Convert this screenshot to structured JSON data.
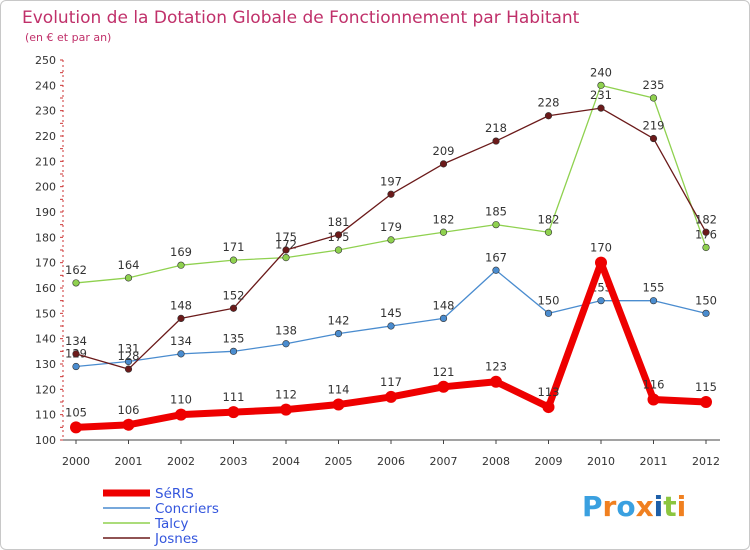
{
  "chart_data": {
    "type": "line",
    "title": "Evolution de la Dotation Globale de Fonctionnement par Habitant",
    "subtitle": "(en € et par an)",
    "xlabel": "",
    "ylabel": "",
    "x": [
      "2000",
      "2001",
      "2002",
      "2003",
      "2004",
      "2005",
      "2006",
      "2007",
      "2008",
      "2009",
      "2010",
      "2011",
      "2012"
    ],
    "ylim": [
      100,
      250
    ],
    "yticks": [
      100,
      110,
      120,
      130,
      140,
      150,
      160,
      170,
      180,
      190,
      200,
      210,
      220,
      230,
      240,
      250
    ],
    "grid": false,
    "legend_position": "bottom-left",
    "series": [
      {
        "name": "SéRIS",
        "color": "#ee0000",
        "values": [
          105,
          106,
          110,
          111,
          112,
          114,
          117,
          121,
          123,
          113,
          170,
          116,
          115
        ]
      },
      {
        "name": "Concriers",
        "color": "#4a8ccf",
        "values": [
          129,
          131,
          134,
          135,
          138,
          142,
          145,
          148,
          167,
          150,
          155,
          155,
          150
        ]
      },
      {
        "name": "Talcy",
        "color": "#8fd14f",
        "values": [
          162,
          164,
          169,
          171,
          172,
          175,
          179,
          182,
          185,
          182,
          240,
          235,
          176
        ]
      },
      {
        "name": "Josnes",
        "color": "#6b1a1a",
        "values": [
          134,
          128,
          148,
          152,
          175,
          181,
          197,
          209,
          218,
          228,
          231,
          219,
          182
        ]
      }
    ]
  },
  "logo": {
    "text": "Proxiti",
    "colors": [
      "#3aa0e0",
      "#f08020",
      "#3aa0e0",
      "#f08020",
      "#1e5fa8",
      "#8cc63f",
      "#f08020"
    ]
  }
}
